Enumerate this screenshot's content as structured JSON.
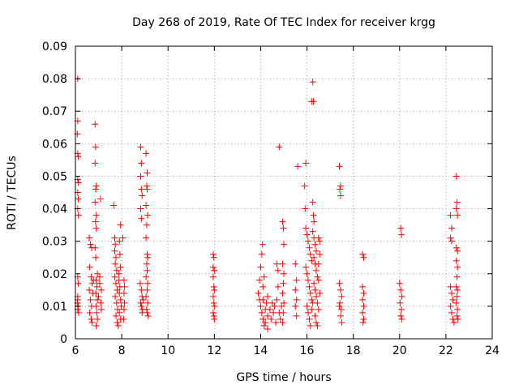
{
  "chart_data": {
    "type": "scatter",
    "title": "Day 268 of 2019, Rate Of TEC Index for receiver krgg",
    "xlabel": "GPS time / hours",
    "ylabel": "ROTI / TECUs",
    "xlim": [
      6,
      24
    ],
    "ylim": [
      0,
      0.09
    ],
    "xticks": [
      6,
      8,
      10,
      12,
      14,
      16,
      18,
      20,
      22,
      24
    ],
    "yticks": [
      0,
      0.01,
      0.02,
      0.03,
      0.04,
      0.05,
      0.06,
      0.07,
      0.08,
      0.09
    ],
    "xtick_labels": [
      "6",
      "8",
      "10",
      "12",
      "14",
      "16",
      "18",
      "20",
      "22",
      "24"
    ],
    "ytick_labels": [
      "0",
      "0.01",
      "0.02",
      "0.03",
      "0.04",
      "0.05",
      "0.06",
      "0.07",
      "0.08",
      "0.09"
    ],
    "grid": true,
    "marker": "plus",
    "color": "#ff0000",
    "series": [
      {
        "name": "ROTI",
        "points": [
          [
            6.1,
            0.08
          ],
          [
            6.1,
            0.067
          ],
          [
            6.08,
            0.063
          ],
          [
            6.1,
            0.057
          ],
          [
            6.12,
            0.056
          ],
          [
            6.1,
            0.049
          ],
          [
            6.13,
            0.048
          ],
          [
            6.1,
            0.045
          ],
          [
            6.12,
            0.043
          ],
          [
            6.1,
            0.04
          ],
          [
            6.13,
            0.038
          ],
          [
            6.1,
            0.019
          ],
          [
            6.12,
            0.017
          ],
          [
            6.1,
            0.012
          ],
          [
            6.08,
            0.011
          ],
          [
            6.12,
            0.01
          ],
          [
            6.1,
            0.009
          ],
          [
            6.14,
            0.008
          ],
          [
            6.1,
            0.013
          ],
          [
            6.6,
            0.031
          ],
          [
            6.65,
            0.029
          ],
          [
            6.7,
            0.028
          ],
          [
            6.62,
            0.022
          ],
          [
            6.68,
            0.019
          ],
          [
            6.72,
            0.017
          ],
          [
            6.6,
            0.015
          ],
          [
            6.65,
            0.012
          ],
          [
            6.7,
            0.01
          ],
          [
            6.62,
            0.008
          ],
          [
            6.68,
            0.006
          ],
          [
            6.72,
            0.005
          ],
          [
            6.75,
            0.014
          ],
          [
            6.78,
            0.018
          ],
          [
            6.85,
            0.066
          ],
          [
            6.87,
            0.059
          ],
          [
            6.85,
            0.054
          ],
          [
            6.9,
            0.047
          ],
          [
            6.88,
            0.046
          ],
          [
            6.85,
            0.042
          ],
          [
            6.9,
            0.038
          ],
          [
            6.87,
            0.036
          ],
          [
            6.9,
            0.034
          ],
          [
            6.85,
            0.028
          ],
          [
            6.88,
            0.025
          ],
          [
            6.95,
            0.02
          ],
          [
            6.9,
            0.018
          ],
          [
            6.93,
            0.016
          ],
          [
            6.88,
            0.014
          ],
          [
            6.95,
            0.012
          ],
          [
            6.9,
            0.01
          ],
          [
            6.92,
            0.008
          ],
          [
            6.95,
            0.006
          ],
          [
            6.9,
            0.004
          ],
          [
            7.0,
            0.013
          ],
          [
            7.05,
            0.017
          ],
          [
            7.1,
            0.011
          ],
          [
            7.12,
            0.009
          ],
          [
            7.08,
            0.043
          ],
          [
            7.05,
            0.019
          ],
          [
            7.12,
            0.015
          ],
          [
            7.65,
            0.041
          ],
          [
            7.7,
            0.031
          ],
          [
            7.72,
            0.029
          ],
          [
            7.7,
            0.027
          ],
          [
            7.75,
            0.025
          ],
          [
            7.72,
            0.023
          ],
          [
            7.78,
            0.021
          ],
          [
            7.7,
            0.019
          ],
          [
            7.75,
            0.017
          ],
          [
            7.8,
            0.015
          ],
          [
            7.72,
            0.013
          ],
          [
            7.78,
            0.011
          ],
          [
            7.82,
            0.009
          ],
          [
            7.75,
            0.007
          ],
          [
            7.8,
            0.005
          ],
          [
            7.85,
            0.004
          ],
          [
            7.88,
            0.018
          ],
          [
            7.9,
            0.014
          ],
          [
            7.95,
            0.035
          ],
          [
            7.9,
            0.03
          ],
          [
            7.92,
            0.026
          ],
          [
            7.95,
            0.022
          ],
          [
            7.88,
            0.02
          ],
          [
            7.92,
            0.016
          ],
          [
            7.95,
            0.012
          ],
          [
            7.98,
            0.01
          ],
          [
            7.9,
            0.008
          ],
          [
            7.95,
            0.006
          ],
          [
            8.05,
            0.031
          ],
          [
            8.1,
            0.018
          ],
          [
            8.1,
            0.014
          ],
          [
            8.12,
            0.011
          ],
          [
            8.1,
            0.009
          ],
          [
            8.08,
            0.006
          ],
          [
            8.12,
            0.016
          ],
          [
            8.82,
            0.059
          ],
          [
            8.85,
            0.054
          ],
          [
            8.82,
            0.05
          ],
          [
            8.85,
            0.046
          ],
          [
            8.88,
            0.044
          ],
          [
            8.82,
            0.04
          ],
          [
            8.85,
            0.037
          ],
          [
            8.8,
            0.017
          ],
          [
            8.85,
            0.015
          ],
          [
            8.88,
            0.013
          ],
          [
            8.82,
            0.011
          ],
          [
            8.85,
            0.01
          ],
          [
            8.9,
            0.009
          ],
          [
            8.88,
            0.008
          ],
          [
            8.92,
            0.012
          ],
          [
            9.05,
            0.057
          ],
          [
            9.1,
            0.051
          ],
          [
            9.08,
            0.047
          ],
          [
            9.1,
            0.046
          ],
          [
            9.05,
            0.041
          ],
          [
            9.12,
            0.038
          ],
          [
            9.08,
            0.035
          ],
          [
            9.05,
            0.031
          ],
          [
            9.1,
            0.026
          ],
          [
            9.12,
            0.025
          ],
          [
            9.08,
            0.023
          ],
          [
            9.1,
            0.021
          ],
          [
            9.05,
            0.019
          ],
          [
            9.12,
            0.017
          ],
          [
            9.1,
            0.015
          ],
          [
            9.05,
            0.013
          ],
          [
            9.12,
            0.011
          ],
          [
            9.08,
            0.009
          ],
          [
            9.1,
            0.008
          ],
          [
            9.14,
            0.007
          ],
          [
            11.95,
            0.026
          ],
          [
            11.98,
            0.025
          ],
          [
            11.95,
            0.022
          ],
          [
            12.0,
            0.021
          ],
          [
            11.95,
            0.019
          ],
          [
            11.98,
            0.016
          ],
          [
            12.0,
            0.015
          ],
          [
            11.95,
            0.013
          ],
          [
            11.98,
            0.011
          ],
          [
            12.0,
            0.01
          ],
          [
            11.95,
            0.008
          ],
          [
            11.98,
            0.007
          ],
          [
            12.0,
            0.006
          ],
          [
            13.9,
            0.014
          ],
          [
            13.95,
            0.018
          ],
          [
            14.0,
            0.022
          ],
          [
            14.05,
            0.026
          ],
          [
            14.08,
            0.029
          ],
          [
            13.95,
            0.012
          ],
          [
            14.0,
            0.01
          ],
          [
            14.05,
            0.008
          ],
          [
            14.1,
            0.006
          ],
          [
            14.15,
            0.004
          ],
          [
            14.2,
            0.009
          ],
          [
            14.25,
            0.011
          ],
          [
            14.3,
            0.013
          ],
          [
            14.1,
            0.016
          ],
          [
            14.15,
            0.019
          ],
          [
            14.2,
            0.005
          ],
          [
            14.3,
            0.007
          ],
          [
            14.4,
            0.009
          ],
          [
            14.5,
            0.011
          ],
          [
            14.6,
            0.01
          ],
          [
            14.7,
            0.012
          ],
          [
            14.75,
            0.016
          ],
          [
            14.8,
            0.059
          ],
          [
            14.7,
            0.023
          ],
          [
            14.75,
            0.021
          ],
          [
            14.8,
            0.008
          ],
          [
            14.85,
            0.006
          ],
          [
            14.9,
            0.01
          ],
          [
            14.95,
            0.036
          ],
          [
            14.98,
            0.034
          ],
          [
            15.0,
            0.029
          ],
          [
            14.95,
            0.023
          ],
          [
            15.0,
            0.02
          ],
          [
            14.98,
            0.017
          ],
          [
            14.95,
            0.014
          ],
          [
            15.0,
            0.011
          ],
          [
            14.98,
            0.008
          ],
          [
            14.95,
            0.005
          ],
          [
            14.3,
            0.003
          ],
          [
            14.1,
            0.012
          ],
          [
            14.45,
            0.006
          ],
          [
            14.55,
            0.008
          ],
          [
            14.65,
            0.005
          ],
          [
            15.5,
            0.023
          ],
          [
            15.55,
            0.018
          ],
          [
            15.5,
            0.015
          ],
          [
            15.55,
            0.012
          ],
          [
            15.5,
            0.01
          ],
          [
            15.55,
            0.007
          ],
          [
            15.6,
            0.053
          ],
          [
            15.9,
            0.047
          ],
          [
            15.92,
            0.04
          ],
          [
            15.95,
            0.054
          ],
          [
            15.95,
            0.034
          ],
          [
            16.0,
            0.032
          ],
          [
            16.05,
            0.03
          ],
          [
            16.1,
            0.028
          ],
          [
            16.15,
            0.026
          ],
          [
            16.2,
            0.024
          ],
          [
            15.95,
            0.022
          ],
          [
            16.0,
            0.02
          ],
          [
            16.05,
            0.018
          ],
          [
            16.1,
            0.016
          ],
          [
            16.15,
            0.014
          ],
          [
            16.2,
            0.012
          ],
          [
            16.0,
            0.01
          ],
          [
            16.05,
            0.008
          ],
          [
            16.1,
            0.006
          ],
          [
            16.15,
            0.004
          ],
          [
            16.2,
            0.009
          ],
          [
            16.25,
            0.011
          ],
          [
            16.2,
            0.073
          ],
          [
            16.28,
            0.073
          ],
          [
            16.25,
            0.079
          ],
          [
            16.25,
            0.042
          ],
          [
            16.28,
            0.038
          ],
          [
            16.3,
            0.036
          ],
          [
            16.25,
            0.033
          ],
          [
            16.3,
            0.031
          ],
          [
            16.35,
            0.029
          ],
          [
            16.4,
            0.027
          ],
          [
            16.3,
            0.025
          ],
          [
            16.35,
            0.023
          ],
          [
            16.4,
            0.021
          ],
          [
            16.45,
            0.019
          ],
          [
            16.3,
            0.017
          ],
          [
            16.35,
            0.015
          ],
          [
            16.4,
            0.013
          ],
          [
            16.45,
            0.011
          ],
          [
            16.5,
            0.009
          ],
          [
            16.35,
            0.007
          ],
          [
            16.4,
            0.005
          ],
          [
            16.45,
            0.004
          ],
          [
            16.5,
            0.018
          ],
          [
            16.55,
            0.014
          ],
          [
            16.5,
            0.023
          ],
          [
            16.55,
            0.026
          ],
          [
            16.5,
            0.031
          ],
          [
            16.55,
            0.03
          ],
          [
            17.4,
            0.053
          ],
          [
            17.45,
            0.047
          ],
          [
            17.42,
            0.046
          ],
          [
            17.45,
            0.044
          ],
          [
            17.4,
            0.017
          ],
          [
            17.45,
            0.015
          ],
          [
            17.5,
            0.013
          ],
          [
            17.42,
            0.011
          ],
          [
            17.48,
            0.009
          ],
          [
            17.45,
            0.007
          ],
          [
            17.5,
            0.005
          ],
          [
            17.4,
            0.01
          ],
          [
            18.4,
            0.026
          ],
          [
            18.45,
            0.025
          ],
          [
            18.4,
            0.016
          ],
          [
            18.45,
            0.014
          ],
          [
            18.4,
            0.012
          ],
          [
            18.45,
            0.01
          ],
          [
            18.4,
            0.008
          ],
          [
            18.45,
            0.006
          ],
          [
            18.42,
            0.005
          ],
          [
            20.05,
            0.034
          ],
          [
            20.08,
            0.032
          ],
          [
            20.0,
            0.017
          ],
          [
            20.05,
            0.015
          ],
          [
            20.1,
            0.013
          ],
          [
            20.02,
            0.011
          ],
          [
            20.08,
            0.009
          ],
          [
            20.05,
            0.007
          ],
          [
            20.1,
            0.006
          ],
          [
            22.2,
            0.038
          ],
          [
            22.25,
            0.034
          ],
          [
            22.2,
            0.031
          ],
          [
            22.25,
            0.03
          ],
          [
            22.2,
            0.016
          ],
          [
            22.25,
            0.014
          ],
          [
            22.3,
            0.012
          ],
          [
            22.2,
            0.01
          ],
          [
            22.25,
            0.008
          ],
          [
            22.3,
            0.006
          ],
          [
            22.35,
            0.005
          ],
          [
            22.45,
            0.05
          ],
          [
            22.48,
            0.042
          ],
          [
            22.45,
            0.04
          ],
          [
            22.5,
            0.038
          ],
          [
            22.45,
            0.028
          ],
          [
            22.5,
            0.027
          ],
          [
            22.45,
            0.024
          ],
          [
            22.5,
            0.022
          ],
          [
            22.48,
            0.019
          ],
          [
            22.45,
            0.016
          ],
          [
            22.5,
            0.015
          ],
          [
            22.48,
            0.013
          ],
          [
            22.45,
            0.011
          ],
          [
            22.5,
            0.009
          ],
          [
            22.48,
            0.007
          ],
          [
            22.52,
            0.006
          ]
        ]
      }
    ]
  }
}
